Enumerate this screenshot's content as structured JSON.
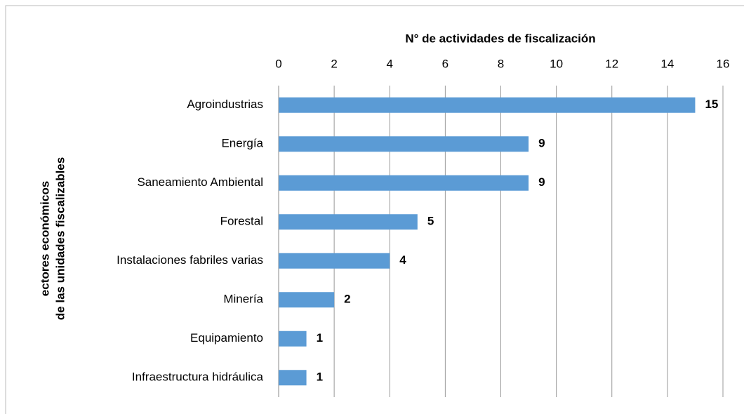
{
  "chart_data": {
    "type": "bar",
    "orientation": "horizontal",
    "x_label": "N° de actividades de fiscalización",
    "y_label": [
      "ectores económicos",
      "de las unidades fiscalizables"
    ],
    "categories": [
      "Agroindustrias",
      "Energía",
      "Saneamiento Ambiental",
      "Forestal",
      "Instalaciones fabriles varias",
      "Minería",
      "Equipamiento",
      "Infraestructura hidráulica"
    ],
    "values": [
      15,
      9,
      9,
      5,
      4,
      2,
      1,
      1
    ],
    "color": "#5b9bd5",
    "xlim": [
      0,
      16
    ],
    "xticks": [
      0,
      2,
      4,
      6,
      8,
      10,
      12,
      14,
      16
    ],
    "grid": true
  }
}
